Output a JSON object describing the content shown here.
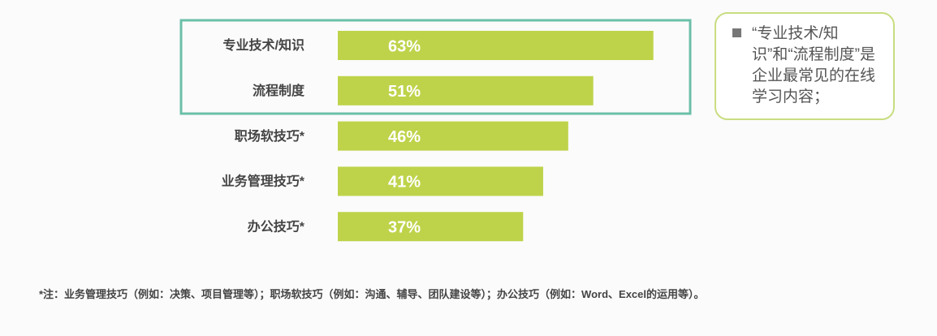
{
  "chart_data": {
    "type": "bar",
    "orientation": "horizontal",
    "categories": [
      "专业技术/知识",
      "流程制度",
      "职场软技巧*",
      "业务管理技巧*",
      "办公技巧*"
    ],
    "values": [
      63,
      51,
      46,
      41,
      37
    ],
    "value_labels": [
      "63%",
      "51%",
      "46%",
      "41%",
      "37%"
    ],
    "color": "#bfd34a",
    "annotation": "“专业技术/知识”和“流程制度”是企业最常见的在线学习内容；",
    "note": "*注：业务管理技巧（例如：决策、项目管理等）；职场软技巧（例如：沟通、辅导、团队建设等）；办公技巧（例如：Word、Excel的运用等）。"
  }
}
